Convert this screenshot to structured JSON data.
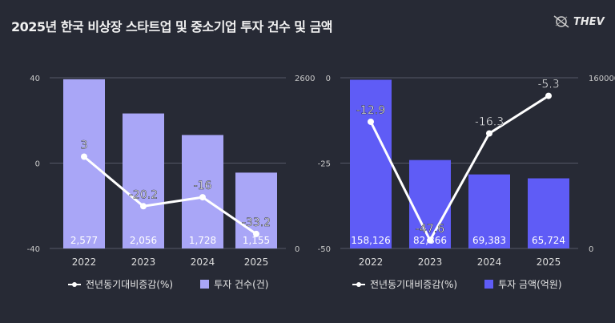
{
  "title": "2025년 한국 비상장 스타트업 및 중소기업 투자 건수 및 금액",
  "logo": {
    "text": "THEV",
    "icon": "compass-logo-icon"
  },
  "colors": {
    "background": "#272a35",
    "bars_left": "#a9a6f7",
    "bars_right": "#5f5cf6",
    "line": "#ffffff",
    "grid": "#555866"
  },
  "chart_data": [
    {
      "type": "bar+line",
      "categories": [
        "2022",
        "2023",
        "2024",
        "2025"
      ],
      "series": [
        {
          "name": "투자 건수(건)",
          "type": "bar",
          "axis": "right",
          "values": [
            2577,
            2056,
            1728,
            1155
          ],
          "labels": [
            "2,577",
            "2,056",
            "1,728",
            "1,155"
          ]
        },
        {
          "name": "전년동기대비증감(%)",
          "type": "line",
          "axis": "left",
          "values": [
            3,
            -20.2,
            -16,
            -33.2
          ],
          "labels": [
            "3",
            "-20.2",
            "-16",
            "-33.2"
          ]
        }
      ],
      "left_axis": {
        "range": [
          -40,
          40
        ],
        "ticks": [
          "40",
          "0",
          "-40"
        ]
      },
      "right_axis": {
        "range": [
          0,
          2600
        ],
        "ticks": [
          "2600",
          "0"
        ]
      },
      "grid": true,
      "legend": "bottom"
    },
    {
      "type": "bar+line",
      "categories": [
        "2022",
        "2023",
        "2024",
        "2025"
      ],
      "series": [
        {
          "name": "투자 금액(억원)",
          "type": "bar",
          "axis": "right",
          "values": [
            158126,
            82866,
            69383,
            65724
          ],
          "labels": [
            "158,126",
            "82,866",
            "69,383",
            "65,724"
          ]
        },
        {
          "name": "전년동기대비증감(%)",
          "type": "line",
          "axis": "left",
          "values": [
            -12.9,
            -47.6,
            -16.3,
            -5.3
          ],
          "labels": [
            "-12.9",
            "-47.6",
            "-16.3",
            "-5.3"
          ]
        }
      ],
      "left_axis": {
        "range": [
          -50,
          0
        ],
        "ticks": [
          "0",
          "-25",
          "-50"
        ]
      },
      "right_axis": {
        "range": [
          0,
          160000
        ],
        "ticks": [
          "160000",
          "0"
        ]
      },
      "grid": true,
      "legend": "bottom"
    }
  ]
}
